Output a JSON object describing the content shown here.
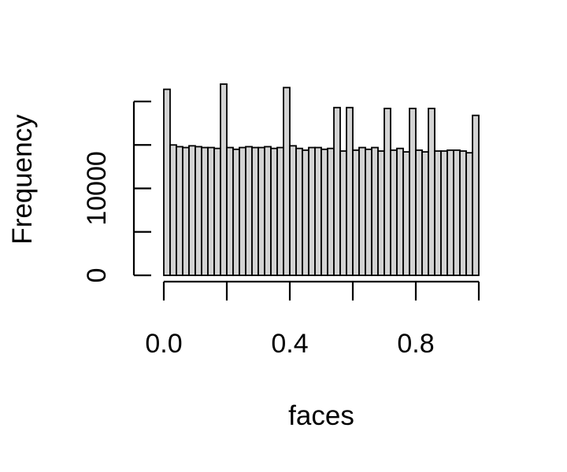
{
  "chart_data": {
    "type": "bar",
    "title": "",
    "xlabel": "faces",
    "ylabel": "Frequency",
    "xlim": [
      0,
      1
    ],
    "ylim": [
      0,
      20000
    ],
    "x_ticks": [
      0.0,
      0.2,
      0.4,
      0.6,
      0.8,
      1.0
    ],
    "x_tick_labels": [
      "0.0",
      "",
      "0.4",
      "",
      "0.8",
      ""
    ],
    "y_ticks": [
      0,
      5000,
      10000,
      15000,
      20000
    ],
    "y_tick_labels": [
      "0",
      "",
      "10000",
      "",
      ""
    ],
    "bin_width": 0.02,
    "bin_starts": [
      0.0,
      0.02,
      0.04,
      0.06,
      0.08,
      0.1,
      0.12,
      0.14,
      0.16,
      0.18,
      0.2,
      0.22,
      0.24,
      0.26,
      0.28,
      0.3,
      0.32,
      0.34,
      0.36,
      0.38,
      0.4,
      0.42,
      0.44,
      0.46,
      0.48,
      0.5,
      0.52,
      0.54,
      0.56,
      0.58,
      0.6,
      0.62,
      0.64,
      0.66,
      0.68,
      0.7,
      0.72,
      0.74,
      0.76,
      0.78,
      0.8,
      0.82,
      0.84,
      0.86,
      0.88,
      0.9,
      0.92,
      0.94,
      0.96,
      0.98
    ],
    "values": [
      21400,
      15000,
      14800,
      14700,
      14900,
      14800,
      14700,
      14700,
      14600,
      22000,
      14700,
      14500,
      14700,
      14800,
      14700,
      14700,
      14800,
      14600,
      14700,
      21600,
      14900,
      14600,
      14400,
      14700,
      14700,
      14500,
      14600,
      19300,
      14300,
      19300,
      14400,
      14700,
      14500,
      14700,
      14300,
      19200,
      14400,
      14600,
      14200,
      19200,
      14400,
      14200,
      19200,
      14300,
      14300,
      14400,
      14400,
      14300,
      14100,
      18400
    ]
  }
}
